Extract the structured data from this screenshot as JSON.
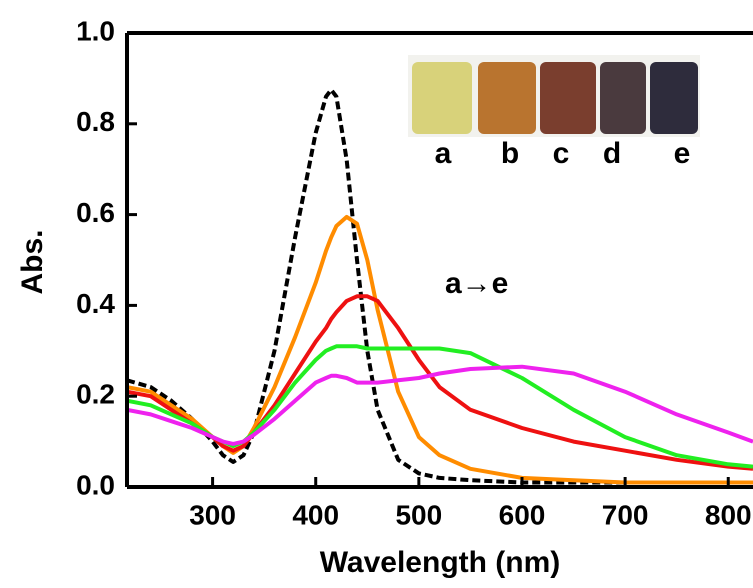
{
  "chart_data": {
    "type": "line",
    "y_label": "Abs.",
    "x_label": "Wavelength (nm)",
    "annotation": "a→e",
    "inset_labels": [
      "a",
      "b",
      "c",
      "d",
      "e"
    ],
    "x": [
      217,
      240,
      260,
      280,
      300,
      310,
      320,
      330,
      340,
      360,
      380,
      400,
      410,
      415,
      420,
      430,
      440,
      450,
      460,
      480,
      500,
      520,
      550,
      600,
      650,
      700,
      750,
      800,
      824
    ],
    "series": [
      {
        "color": "#000000",
        "dashed": true,
        "values": [
          0.235,
          0.22,
          0.19,
          0.15,
          0.1,
          0.07,
          0.055,
          0.07,
          0.12,
          0.3,
          0.55,
          0.78,
          0.86,
          0.875,
          0.86,
          0.72,
          0.5,
          0.3,
          0.17,
          0.06,
          0.03,
          0.02,
          0.015,
          0.01,
          0.01,
          0.01,
          0.01,
          0.01,
          0.01
        ]
      },
      {
        "color": "#ff8c00",
        "values": [
          0.22,
          0.21,
          0.18,
          0.15,
          0.11,
          0.09,
          0.075,
          0.09,
          0.13,
          0.22,
          0.33,
          0.45,
          0.52,
          0.55,
          0.575,
          0.595,
          0.58,
          0.5,
          0.39,
          0.21,
          0.11,
          0.07,
          0.04,
          0.02,
          0.015,
          0.01,
          0.01,
          0.01,
          0.01
        ]
      },
      {
        "color": "#ee1111",
        "values": [
          0.21,
          0.2,
          0.17,
          0.14,
          0.11,
          0.09,
          0.08,
          0.09,
          0.12,
          0.18,
          0.25,
          0.32,
          0.35,
          0.37,
          0.385,
          0.41,
          0.42,
          0.42,
          0.41,
          0.35,
          0.28,
          0.22,
          0.17,
          0.13,
          0.1,
          0.08,
          0.06,
          0.045,
          0.04
        ]
      },
      {
        "color": "#22ee22",
        "values": [
          0.19,
          0.18,
          0.16,
          0.14,
          0.11,
          0.1,
          0.09,
          0.1,
          0.12,
          0.17,
          0.23,
          0.28,
          0.3,
          0.305,
          0.31,
          0.31,
          0.31,
          0.305,
          0.305,
          0.305,
          0.305,
          0.305,
          0.295,
          0.24,
          0.17,
          0.11,
          0.07,
          0.05,
          0.045
        ]
      },
      {
        "color": "#ee22ee",
        "values": [
          0.17,
          0.16,
          0.145,
          0.13,
          0.11,
          0.1,
          0.095,
          0.1,
          0.115,
          0.15,
          0.19,
          0.23,
          0.24,
          0.245,
          0.245,
          0.24,
          0.23,
          0.23,
          0.23,
          0.235,
          0.24,
          0.25,
          0.26,
          0.265,
          0.25,
          0.21,
          0.16,
          0.12,
          0.1
        ]
      }
    ],
    "xlim": [
      217,
      824
    ],
    "xticks": [
      300,
      400,
      500,
      600,
      700,
      800
    ],
    "ylim": [
      0,
      1
    ],
    "yticks": [
      {
        "value": 0,
        "label": "0.0"
      },
      0.2,
      0.4,
      0.6,
      0.8,
      {
        "value": 1,
        "label": "1.0"
      }
    ]
  }
}
